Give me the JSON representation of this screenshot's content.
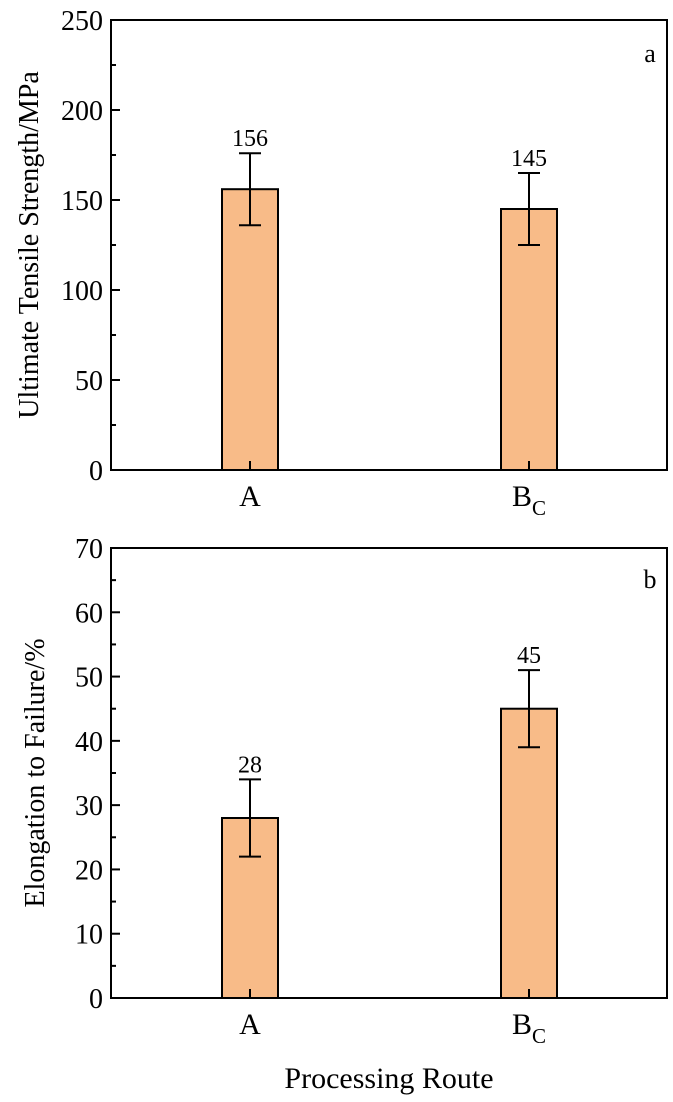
{
  "figure": {
    "xlabel": "Processing Route"
  },
  "chart_data": [
    {
      "type": "bar",
      "panel_label": "a",
      "ylabel": "Ultimate Tensile Strength/MPa",
      "ylim": [
        0,
        250
      ],
      "yticks": [
        0,
        50,
        100,
        150,
        200,
        250
      ],
      "categories": [
        {
          "main": "A",
          "sub": ""
        },
        {
          "main": "B",
          "sub": "C"
        }
      ],
      "values": [
        156,
        145
      ],
      "errors": [
        20,
        20
      ],
      "value_labels": [
        "156",
        "145"
      ],
      "bar_color": "#f8bb88",
      "grid": false
    },
    {
      "type": "bar",
      "panel_label": "b",
      "ylabel": "Elongation to Failure/%",
      "ylim": [
        0,
        70
      ],
      "yticks": [
        0,
        10,
        20,
        30,
        40,
        50,
        60,
        70
      ],
      "categories": [
        {
          "main": "A",
          "sub": ""
        },
        {
          "main": "B",
          "sub": "C"
        }
      ],
      "values": [
        28,
        45
      ],
      "errors": [
        6,
        6
      ],
      "value_labels": [
        "28",
        "45"
      ],
      "bar_color": "#f8bb88",
      "grid": false
    }
  ]
}
